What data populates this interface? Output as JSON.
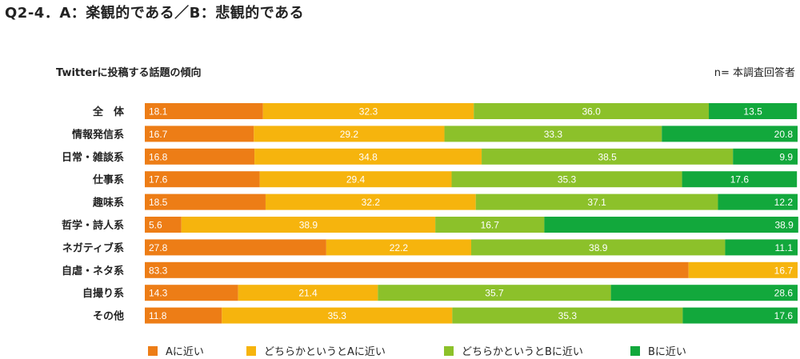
{
  "page_title": "Q2-4．A：楽観的である／B：悲観的である",
  "chart_data": {
    "type": "bar",
    "stacked": true,
    "orientation": "horizontal",
    "title": "Twitterに投稿する話題の傾向",
    "sample_note": "n= 本調査回答者",
    "categories": [
      "全　体",
      "情報発信系",
      "日常・雑談系",
      "仕事系",
      "趣味系",
      "哲学・詩人系",
      "ネガティブ系",
      "自虐・ネタ系",
      "自撮り系",
      "その他"
    ],
    "series": [
      {
        "name": "Aに近い",
        "color": "#ed7d16",
        "values": [
          18.1,
          16.7,
          16.8,
          17.6,
          18.5,
          5.6,
          27.8,
          83.3,
          14.3,
          11.8
        ],
        "labels": [
          "18.1",
          "16.7",
          "16.8",
          "17.6",
          "18.5",
          "5.6",
          "27.8",
          "83.3",
          "14.3",
          "11.8"
        ]
      },
      {
        "name": "どちらかというとAに近い",
        "color": "#f6b40d",
        "values": [
          32.3,
          29.2,
          34.8,
          29.4,
          32.2,
          38.9,
          22.2,
          16.7,
          21.4,
          35.3
        ],
        "labels": [
          "32.3",
          "29.2",
          "34.8",
          "29.4",
          "32.2",
          "38.9",
          "22.2",
          "16.7",
          "21.4",
          "35.3"
        ]
      },
      {
        "name": "どちらかというとBに近い",
        "color": "#8cc12a",
        "values": [
          36.0,
          33.3,
          38.5,
          35.3,
          37.1,
          16.7,
          38.9,
          0,
          35.7,
          35.3
        ],
        "labels": [
          "36.0",
          "33.3",
          "38.5",
          "35.3",
          "37.1",
          "16.7",
          "38.9",
          "",
          "35.7",
          "35.3"
        ]
      },
      {
        "name": "Bに近い",
        "color": "#12a83c",
        "values": [
          13.5,
          20.8,
          9.9,
          17.6,
          12.2,
          38.9,
          11.1,
          0,
          28.6,
          17.6
        ],
        "labels": [
          "13.5",
          "20.8",
          "9.9",
          "17.6",
          "12.2",
          "38.9",
          "11.1",
          "",
          "28.6",
          "17.6"
        ]
      }
    ],
    "xlim": [
      0,
      100
    ],
    "grid": false,
    "legend_position": "bottom"
  }
}
